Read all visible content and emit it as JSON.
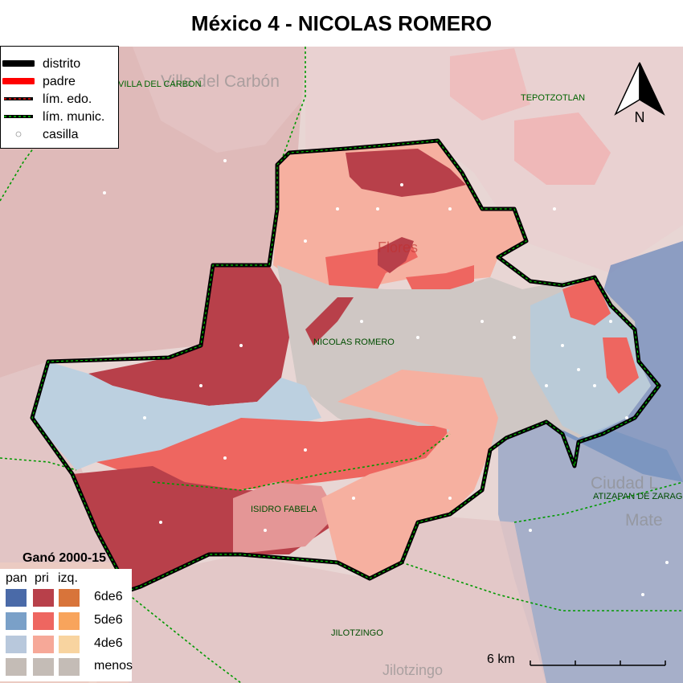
{
  "title": "México 4 - NICOLAS ROMERO",
  "legend": {
    "lines": [
      {
        "label": "distrito",
        "color": "#000000"
      },
      {
        "label": "padre",
        "color": "#ff0000"
      },
      {
        "label": "lím. edo.",
        "color": "#000000"
      },
      {
        "label": "lím. munic.",
        "color": "#00cc00"
      },
      {
        "label": "casilla",
        "color": "#ffffff"
      }
    ],
    "won_title": "Ganó 2000-15",
    "columns": [
      "pan",
      "pri",
      "izq."
    ],
    "rows": [
      "6de6",
      "5de6",
      "4de6",
      "menos"
    ],
    "colors": {
      "pan": [
        "#4a6aa8",
        "#7aa0c8",
        "#b8c8dc",
        "#c4bcb6"
      ],
      "pri": [
        "#b8404a",
        "#ee6660",
        "#f6a898",
        "#c4bcb6"
      ],
      "izq": [
        "#d8743a",
        "#f8a45c",
        "#f8d4a0",
        "#c4bcb6"
      ]
    }
  },
  "places": {
    "villa": "VILLA DEL CARBON",
    "tepotzotlan": "TEPOTZOTLAN",
    "nicolas": "NICOLAS ROMERO",
    "isidro": "ISIDRO FABELA",
    "atizapan": "ATIZAPAN DE ZARAGOZA",
    "jilotzingo": "JILOTZINGO"
  },
  "basemap_text": {
    "villa": "Villa del Carbón",
    "flores": "Flores",
    "ciudad": "Ciudad L",
    "mate": "Mate",
    "jilotzingo": "Jilotzingo"
  },
  "north_label": "N",
  "scale_label": "6 km"
}
